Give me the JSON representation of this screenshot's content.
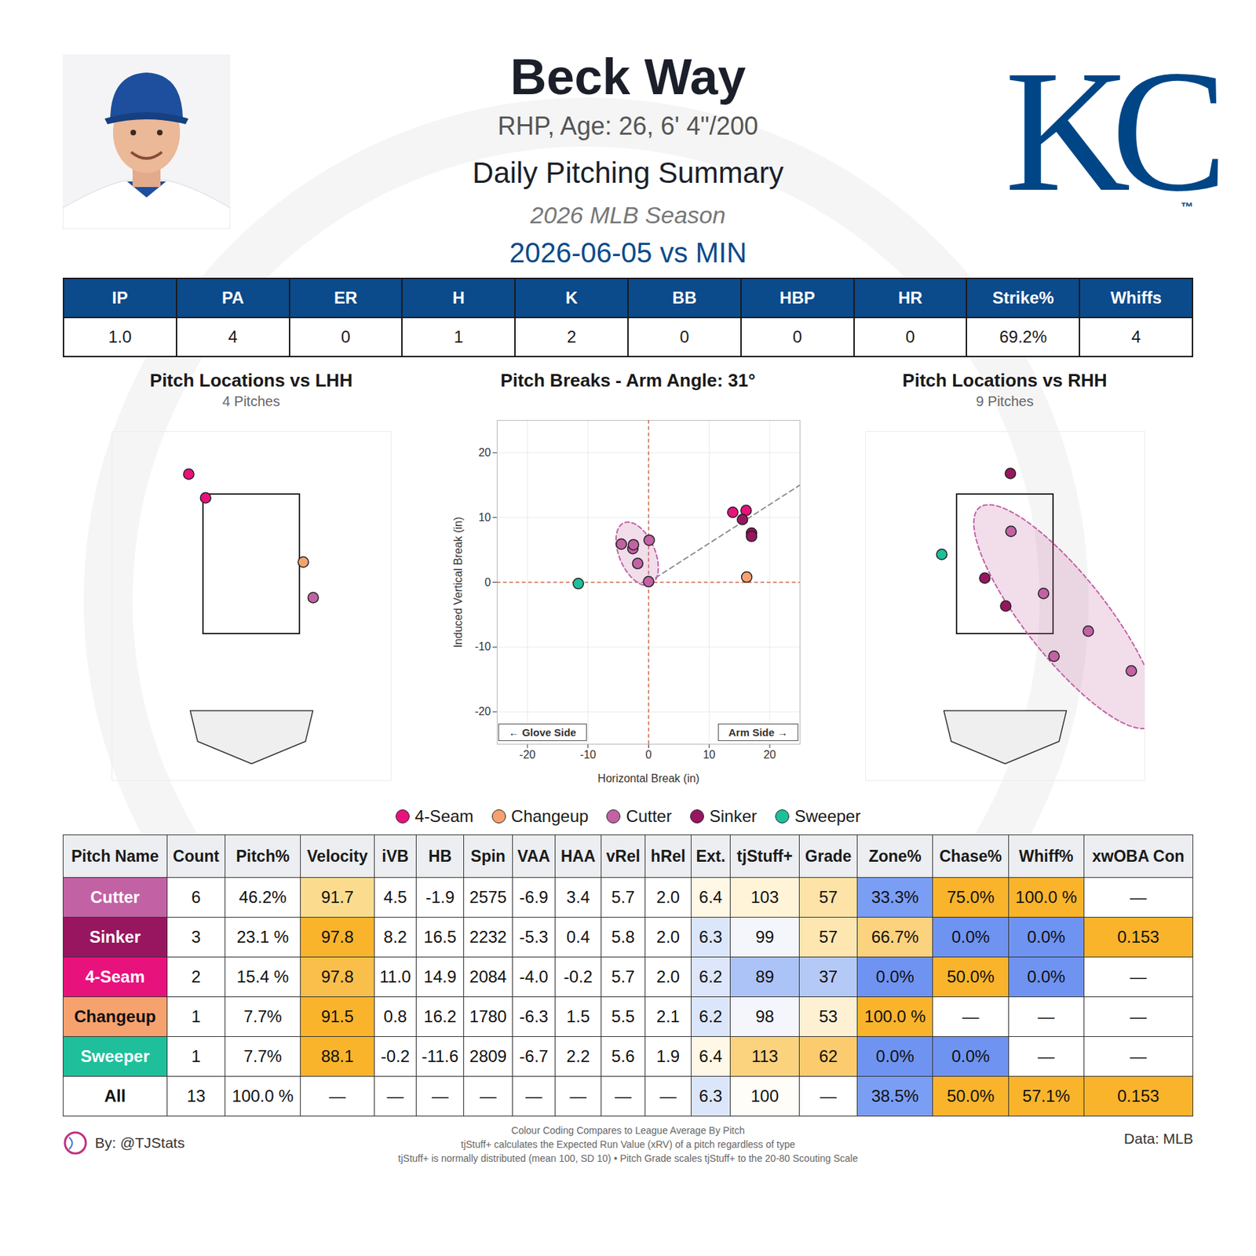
{
  "header": {
    "name": "Beck Way",
    "bio": "RHP, Age: 26, 6' 4\"/200",
    "report": "Daily Pitching Summary",
    "season": "2026 MLB Season",
    "logo_text": "KC",
    "logo_mark": "™"
  },
  "game": "2026-06-05 vs MIN",
  "stat_line": {
    "headers": [
      "IP",
      "PA",
      "ER",
      "H",
      "K",
      "BB",
      "HBP",
      "HR",
      "Strike%",
      "Whiffs"
    ],
    "values": [
      "1.0",
      "4",
      "0",
      "1",
      "2",
      "0",
      "0",
      "0",
      "69.2%",
      "4"
    ]
  },
  "chart_data": [
    {
      "type": "scatter",
      "title": "Pitch Locations vs LHH",
      "subtitle": "4 Pitches",
      "xlim": [
        -2.4,
        2.4
      ],
      "ylim": [
        -0.6,
        4.4
      ],
      "tick_labels": false,
      "grid": false,
      "strike_zone": {
        "x": [
          -0.83,
          0.83
        ],
        "y": [
          1.5,
          3.5
        ]
      },
      "series": [
        {
          "name": "4-Seam",
          "color": "#e8127c",
          "x": [
            -1.08,
            -0.79
          ],
          "y": [
            3.79,
            3.45
          ]
        },
        {
          "name": "Changeup",
          "color": "#f6a26f",
          "x": [
            0.89
          ],
          "y": [
            2.53
          ]
        },
        {
          "name": "Cutter",
          "color": "#c262a4",
          "x": [
            1.06
          ],
          "y": [
            2.02
          ]
        }
      ]
    },
    {
      "type": "scatter",
      "title": "Pitch Breaks - Arm Angle: 31°",
      "arm_angle": 31,
      "x_label": "Horizontal Break (in)",
      "y_label": "Induced Vertical Break (in)",
      "xlim": [
        -25,
        25
      ],
      "ylim": [
        -25,
        25
      ],
      "xticks": [
        -20,
        -10,
        0,
        10,
        20
      ],
      "yticks": [
        -20,
        -10,
        0,
        10,
        20
      ],
      "grid": true,
      "annotations": [
        "← Glove Side",
        "Arm Side →"
      ],
      "series": [
        {
          "name": "4-Seam",
          "color": "#e8127c",
          "x": [
            13.9,
            16.1
          ],
          "y": [
            10.8,
            11.1
          ]
        },
        {
          "name": "Changeup",
          "color": "#f6a26f",
          "x": [
            16.2
          ],
          "y": [
            0.8
          ]
        },
        {
          "name": "Cutter",
          "color": "#c262a4",
          "x": [
            -4.5,
            -2.6,
            -2.5,
            0.1,
            -1.8,
            0.0
          ],
          "y": [
            5.9,
            5.2,
            5.8,
            6.5,
            2.9,
            0.1
          ]
        },
        {
          "name": "Sinker",
          "color": "#98165f",
          "x": [
            15.5,
            17.0,
            17.0
          ],
          "y": [
            9.7,
            7.6,
            7.1
          ]
        },
        {
          "name": "Sweeper",
          "color": "#1fbf9b",
          "x": [
            -11.6
          ],
          "y": [
            -0.2
          ]
        }
      ]
    },
    {
      "type": "scatter",
      "title": "Pitch Locations vs RHH",
      "subtitle": "9 Pitches",
      "xlim": [
        -2.4,
        2.4
      ],
      "ylim": [
        -0.6,
        4.4
      ],
      "tick_labels": false,
      "grid": false,
      "strike_zone": {
        "x": [
          -0.83,
          0.83
        ],
        "y": [
          1.5,
          3.5
        ]
      },
      "series": [
        {
          "name": "Cutter",
          "color": "#c262a4",
          "x": [
            0.1,
            0.66,
            1.43,
            0.84,
            2.17
          ],
          "y": [
            2.97,
            2.08,
            1.54,
            1.18,
            0.97
          ]
        },
        {
          "name": "Sinker",
          "color": "#98165f",
          "x": [
            0.09,
            -0.35,
            0.01
          ],
          "y": [
            3.8,
            2.3,
            1.9
          ]
        },
        {
          "name": "Sweeper",
          "color": "#1fbf9b",
          "x": [
            -1.09
          ],
          "y": [
            2.64
          ]
        }
      ]
    }
  ],
  "legend": {
    "items": [
      {
        "name": "4-Seam",
        "color": "#e8127c"
      },
      {
        "name": "Changeup",
        "color": "#f6a26f"
      },
      {
        "name": "Cutter",
        "color": "#c262a4"
      },
      {
        "name": "Sinker",
        "color": "#98165f"
      },
      {
        "name": "Sweeper",
        "color": "#1fbf9b"
      }
    ]
  },
  "table": {
    "headers": [
      "Pitch Name",
      "Count",
      "Pitch%",
      "Velocity",
      "iVB",
      "HB",
      "Spin",
      "VAA",
      "HAA",
      "vRel",
      "hRel",
      "Ext.",
      "tjStuff+",
      "Grade",
      "Zone%",
      "Chase%",
      "Whiff%",
      "xwOBA Con"
    ],
    "rows": [
      {
        "cells": [
          "Cutter",
          "6",
          "46.2%",
          "91.7",
          "4.5",
          "-1.9",
          "2575",
          "-6.9",
          "3.4",
          "5.7",
          "2.0",
          "6.4",
          "103",
          "57",
          "33.3%",
          "75.0%",
          "100.0 %",
          "—"
        ],
        "colors": [
          "#c262a4",
          "#ffffff",
          "#ffffff",
          "#fbdc8f",
          "#ffffff",
          "#ffffff",
          "#ffffff",
          "#ffffff",
          "#ffffff",
          "#ffffff",
          "#ffffff",
          "#fff8e6",
          "#fff4d8",
          "#fde3a8",
          "#7b9ef5",
          "#f9b42c",
          "#f9b42c",
          "#ffffff"
        ]
      },
      {
        "cells": [
          "Sinker",
          "3",
          "23.1 %",
          "97.8",
          "8.2",
          "16.5",
          "2232",
          "-5.3",
          "0.4",
          "5.8",
          "2.0",
          "6.3",
          "99",
          "57",
          "66.7%",
          "0.0%",
          "0.0%",
          "0.153"
        ],
        "colors": [
          "#98165f",
          "#ffffff",
          "#ffffff",
          "#f9b42c",
          "#ffffff",
          "#ffffff",
          "#ffffff",
          "#ffffff",
          "#ffffff",
          "#ffffff",
          "#ffffff",
          "#dce6fb",
          "#f4f6fc",
          "#fde6b0",
          "#fbd27e",
          "#6f93f1",
          "#6f93f1",
          "#f9b42c"
        ]
      },
      {
        "cells": [
          "4-Seam",
          "2",
          "15.4 %",
          "97.8",
          "11.0",
          "14.9",
          "2084",
          "-4.0",
          "-0.2",
          "5.7",
          "2.0",
          "6.2",
          "89",
          "37",
          "0.0%",
          "50.0%",
          "0.0%",
          "—"
        ],
        "colors": [
          "#e8127c",
          "#ffffff",
          "#ffffff",
          "#f9bf4a",
          "#ffffff",
          "#ffffff",
          "#ffffff",
          "#ffffff",
          "#ffffff",
          "#ffffff",
          "#ffffff",
          "#dde6fa",
          "#acc3f7",
          "#b5c9f7",
          "#6f93f1",
          "#f9b42c",
          "#6f93f1",
          "#ffffff"
        ]
      },
      {
        "cells": [
          "Changeup",
          "1",
          "7.7%",
          "91.5",
          "0.8",
          "16.2",
          "1780",
          "-6.3",
          "1.5",
          "5.5",
          "2.1",
          "6.2",
          "98",
          "53",
          "100.0 %",
          "—",
          "—",
          "—"
        ],
        "colors": [
          "#f6a26f",
          "#ffffff",
          "#ffffff",
          "#f9b42c",
          "#ffffff",
          "#ffffff",
          "#ffffff",
          "#ffffff",
          "#ffffff",
          "#ffffff",
          "#ffffff",
          "#dce6fb",
          "#f4f6fc",
          "#fdf0d3",
          "#f9b42c",
          "#ffffff",
          "#ffffff",
          "#ffffff"
        ]
      },
      {
        "cells": [
          "Sweeper",
          "1",
          "7.7%",
          "88.1",
          "-0.2",
          "-11.6",
          "2809",
          "-6.7",
          "2.2",
          "5.6",
          "1.9",
          "6.4",
          "113",
          "62",
          "0.0%",
          "0.0%",
          "—",
          "—"
        ],
        "colors": [
          "#1fbf9b",
          "#ffffff",
          "#ffffff",
          "#f9b42c",
          "#ffffff",
          "#ffffff",
          "#ffffff",
          "#ffffff",
          "#ffffff",
          "#ffffff",
          "#ffffff",
          "#fff8e6",
          "#fbd27e",
          "#fbcb6e",
          "#6f93f1",
          "#6f93f1",
          "#ffffff",
          "#ffffff"
        ]
      },
      {
        "cells": [
          "All",
          "13",
          "100.0 %",
          "—",
          "—",
          "—",
          "—",
          "—",
          "—",
          "—",
          "—",
          "6.3",
          "100",
          "—",
          "38.5%",
          "50.0%",
          "57.1%",
          "0.153"
        ],
        "colors": [
          "#ffffff",
          "#ffffff",
          "#ffffff",
          "#ffffff",
          "#ffffff",
          "#ffffff",
          "#ffffff",
          "#ffffff",
          "#ffffff",
          "#ffffff",
          "#ffffff",
          "#dce6fb",
          "#fffdf7",
          "#ffffff",
          "#7b9ef5",
          "#f9b42c",
          "#f9b42c",
          "#f9b42c"
        ]
      }
    ]
  },
  "footer": {
    "credit": "By: @TJStats",
    "notes": [
      "Colour Coding Compares to League Average By Pitch",
      "tjStuff+ calculates the Expected Run Value (xRV) of a pitch regardless of type",
      "tjStuff+ is normally distributed (mean 100, SD 10) • Pitch Grade scales tjStuff+ to the 20-80 Scouting Scale"
    ],
    "source": "Data: MLB"
  }
}
